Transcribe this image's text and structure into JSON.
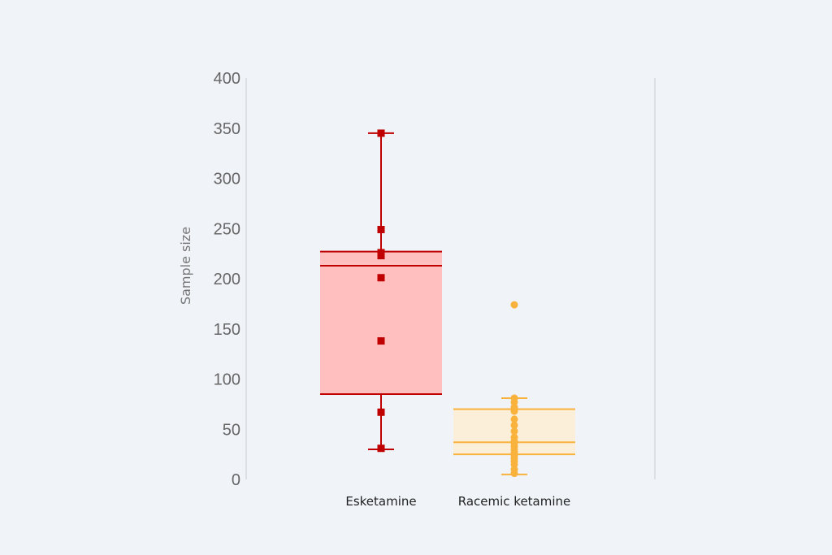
{
  "chart_data": {
    "type": "box",
    "title": "",
    "xlabel": "",
    "ylabel": "Sample size",
    "ylim": [
      0,
      400
    ],
    "yticks": [
      0,
      50,
      100,
      150,
      200,
      250,
      300,
      350,
      400
    ],
    "categories": [
      "Esketamine",
      "Racemic ketamine"
    ],
    "grid": false,
    "series": [
      {
        "category": "Esketamine",
        "color": "#c00000",
        "fill": "#ffbfbf",
        "marker": "square",
        "whisker_low": 30,
        "q1": 85,
        "median": 213,
        "q3": 227,
        "whisker_high": 345,
        "points": [
          345,
          249,
          226,
          223,
          201,
          138,
          67,
          31
        ]
      },
      {
        "category": "Racemic ketamine",
        "color": "#f9b23c",
        "fill": "#fcefda",
        "marker": "circle",
        "whisker_low": 5,
        "q1": 25,
        "median": 37,
        "q3": 70,
        "whisker_high": 81,
        "points": [
          174,
          81,
          77,
          72,
          68,
          60,
          54,
          48,
          42,
          38,
          36,
          33,
          30,
          27,
          24,
          21,
          18,
          15,
          10,
          6
        ]
      }
    ]
  }
}
